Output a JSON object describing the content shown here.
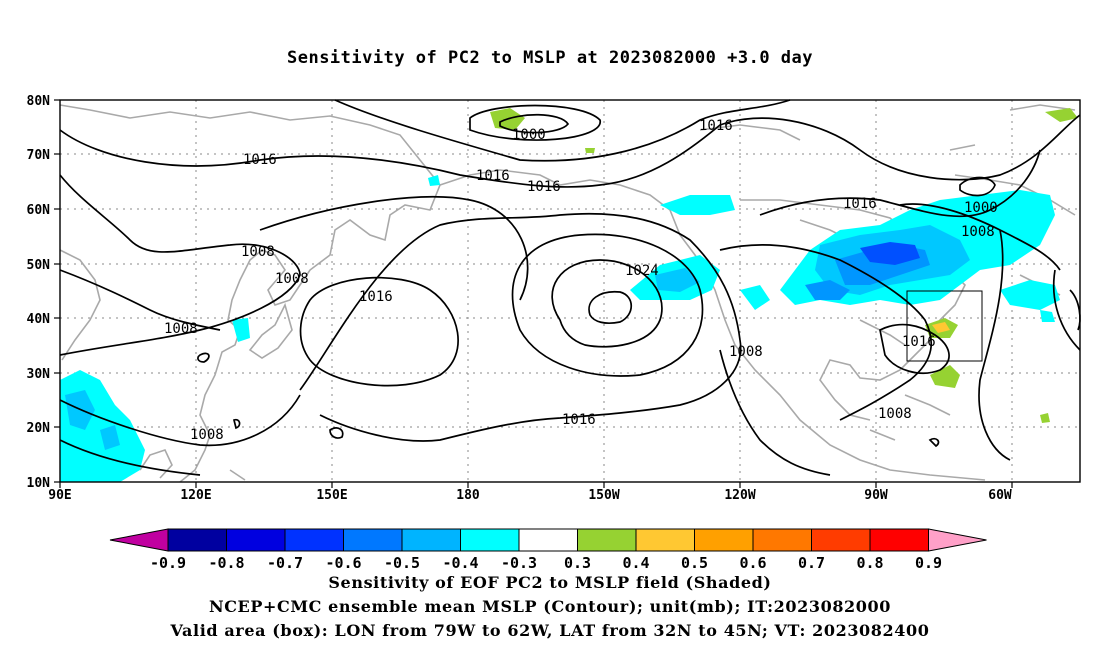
{
  "title": "Sensitivity of PC2 to MSLP at 2023082000 +3.0 day",
  "map": {
    "lat_labels": [
      "80N",
      "70N",
      "60N",
      "50N",
      "40N",
      "30N",
      "20N",
      "10N"
    ],
    "lon_labels": [
      "90E",
      "120E",
      "150E",
      "180",
      "150W",
      "120W",
      "90W",
      "60W"
    ],
    "contour_labels": [
      "1000",
      "1016",
      "1016",
      "1016",
      "1016",
      "1008",
      "1008",
      "1016",
      "1024",
      "1000",
      "1008",
      "1016",
      "1008",
      "1008",
      "1016",
      "1008",
      "1008"
    ],
    "valid_box": {
      "lon_from": "79W",
      "lon_to": "62W",
      "lat_from": "32N",
      "lat_to": "45N"
    },
    "colors": {
      "land_outline": "#a9a9a9",
      "contour": "#000000",
      "shade_light_blue": "#00ffff",
      "shade_mid_blue": "#00c8ff",
      "shade_blue": "#0096ff",
      "shade_dark_blue": "#0050ff",
      "shade_green": "#96d232",
      "shade_yellow": "#ffc832",
      "shade_orange": "#ff9600"
    }
  },
  "colorbar": {
    "labels": [
      "-0.9",
      "-0.8",
      "-0.7",
      "-0.6",
      "-0.5",
      "-0.4",
      "-0.3",
      "0.3",
      "0.4",
      "0.5",
      "0.6",
      "0.7",
      "0.8",
      "0.9"
    ],
    "colors": [
      "#c000a0",
      "#0000a0",
      "#0000e0",
      "#0032ff",
      "#0078ff",
      "#00b4ff",
      "#00ffff",
      "#ffffff",
      "#96d232",
      "#ffc832",
      "#ffa000",
      "#ff7800",
      "#ff3c00",
      "#ff0000",
      "#ffa0c8"
    ]
  },
  "caption": {
    "line1": "Sensitivity of EOF PC2 to MSLP field (Shaded)",
    "line2": "NCEP+CMC ensemble mean MSLP (Contour); unit(mb); IT:2023082000",
    "line3": "Valid area (box): LON from 79W to 62W, LAT from 32N to 45N; VT: 2023082400"
  }
}
